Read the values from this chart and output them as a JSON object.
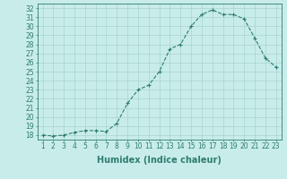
{
  "x": [
    1,
    2,
    3,
    4,
    5,
    6,
    7,
    8,
    9,
    10,
    11,
    12,
    13,
    14,
    15,
    16,
    17,
    18,
    19,
    20,
    21,
    22,
    23
  ],
  "y": [
    18.0,
    17.9,
    18.0,
    18.3,
    18.5,
    18.5,
    18.4,
    19.3,
    21.5,
    23.0,
    23.5,
    25.0,
    27.5,
    28.0,
    30.0,
    31.3,
    31.8,
    31.3,
    31.3,
    30.8,
    28.7,
    26.5,
    25.5
  ],
  "line_color": "#2e7d6e",
  "marker": "+",
  "marker_size": 3,
  "marker_lw": 0.8,
  "bg_color": "#c8ece9",
  "grid_color": "#a8d4cf",
  "xlabel": "Humidex (Indice chaleur)",
  "xlim": [
    0.5,
    23.5
  ],
  "ylim": [
    17.5,
    32.5
  ],
  "yticks": [
    18,
    19,
    20,
    21,
    22,
    23,
    24,
    25,
    26,
    27,
    28,
    29,
    30,
    31,
    32
  ],
  "xticks": [
    1,
    2,
    3,
    4,
    5,
    6,
    7,
    8,
    9,
    10,
    11,
    12,
    13,
    14,
    15,
    16,
    17,
    18,
    19,
    20,
    21,
    22,
    23
  ],
  "tick_label_fontsize": 5.5,
  "xlabel_fontsize": 7.0,
  "line_width": 0.8
}
